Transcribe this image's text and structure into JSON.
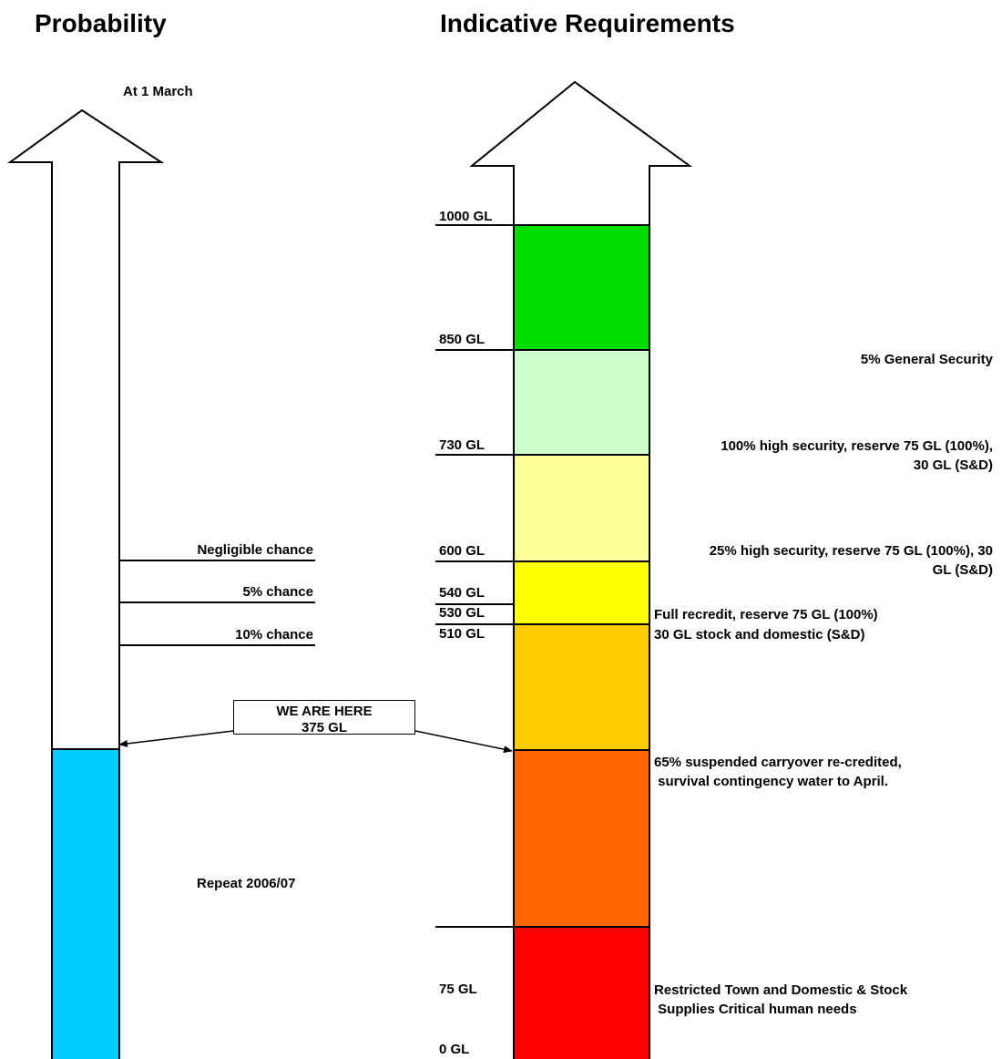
{
  "headings": {
    "probability": "Probability",
    "requirements": "Indicative Requirements"
  },
  "left_arrow": {
    "date_label": "At 1 March",
    "fill_color": "#00CCFF",
    "probability_levels": [
      {
        "label": "Negligible chance"
      },
      {
        "label": "5% chance"
      },
      {
        "label": "10% chance"
      }
    ],
    "fill_label": "Repeat 2006/07"
  },
  "current_level": {
    "line1": "WE ARE HERE",
    "line2": "375 GL"
  },
  "right_arrow": {
    "gl_marks": [
      "1000 GL",
      "850 GL",
      "730 GL",
      "600 GL",
      "540 GL",
      "530 GL",
      "510 GL",
      "75 GL",
      "0 GL"
    ],
    "bands": [
      {
        "name": "band-850-1000",
        "color": "#00DD00"
      },
      {
        "name": "band-730-850",
        "color": "#CCFFCC"
      },
      {
        "name": "band-600-730",
        "color": "#FFFF99"
      },
      {
        "name": "band-510-600",
        "color": "#FFFF00"
      },
      {
        "name": "band-375-510",
        "color": "#FFCC00"
      },
      {
        "name": "band-75-375",
        "color": "#FF6600"
      },
      {
        "name": "band-0-75",
        "color": "#FF0000"
      }
    ],
    "annotations": {
      "general_security": "5%  General Security",
      "high_security_100_l1": "100% high security, reserve 75 GL (100%),",
      "high_security_100_l2": "30 GL (S&D)",
      "high_security_25_l1": "25% high security, reserve 75 GL (100%), 30",
      "high_security_25_l2": "GL (S&D)",
      "full_recredit": "Full recredit, reserve 75 GL (100%)",
      "stock_domestic": "30 GL stock and domestic (S&D)",
      "carryover_l1": "65% suspended carryover re-credited,",
      "carryover_l2": " survival contingency water to April.",
      "restricted_l1": "Restricted Town and Domestic & Stock",
      "restricted_l2": " Supplies Critical human needs"
    }
  }
}
